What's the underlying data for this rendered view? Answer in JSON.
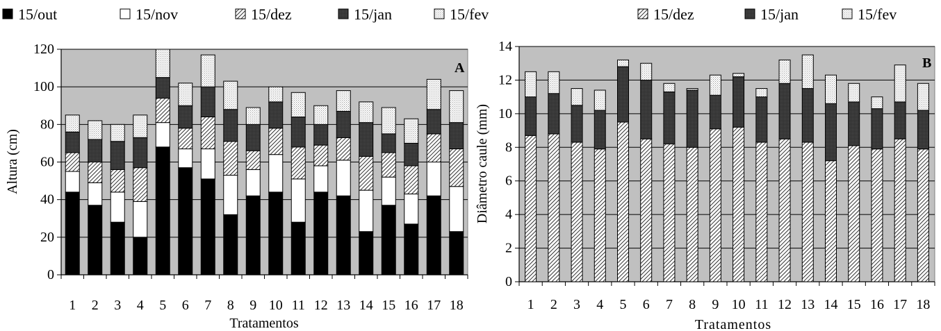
{
  "chart_data": [
    {
      "type": "bar",
      "stacked": true,
      "panel_label": "A",
      "title": "",
      "xlabel": "Tratamentos",
      "ylabel": "Altura (cm)",
      "ylim": [
        0,
        120
      ],
      "yticks": [
        0,
        20,
        40,
        60,
        80,
        100,
        120
      ],
      "grid": true,
      "legend": "top",
      "categories": [
        "1",
        "2",
        "3",
        "4",
        "5",
        "6",
        "7",
        "8",
        "9",
        "10",
        "11",
        "12",
        "13",
        "14",
        "15",
        "16",
        "17",
        "18"
      ],
      "series": [
        {
          "name": "15/out",
          "pattern": "black",
          "values": [
            44,
            37,
            28,
            20,
            68,
            57,
            51,
            32,
            42,
            44,
            28,
            44,
            42,
            23,
            37,
            27,
            42,
            23
          ]
        },
        {
          "name": "15/nov",
          "pattern": "white",
          "values": [
            11,
            12,
            16,
            19,
            13,
            10,
            16,
            21,
            14,
            20,
            23,
            14,
            19,
            22,
            15,
            16,
            18,
            24
          ]
        },
        {
          "name": "15/dez",
          "pattern": "hatch",
          "values": [
            10,
            11,
            12,
            18,
            13,
            11,
            17,
            18,
            10,
            14,
            17,
            11,
            12,
            18,
            13,
            15,
            15,
            20
          ]
        },
        {
          "name": "15/jan",
          "pattern": "dark",
          "values": [
            11,
            12,
            15,
            16,
            11,
            12,
            16,
            17,
            14,
            14,
            16,
            11,
            14,
            18,
            10,
            12,
            13,
            14
          ]
        },
        {
          "name": "15/fev",
          "pattern": "dots",
          "values": [
            9,
            10,
            9,
            12,
            15,
            12,
            17,
            15,
            9,
            8,
            13,
            10,
            11,
            11,
            14,
            13,
            16,
            17
          ]
        }
      ]
    },
    {
      "type": "bar",
      "stacked": true,
      "panel_label": "B",
      "title": "",
      "xlabel": "Tratamentos",
      "ylabel": "Diâmetro caule (mm)",
      "ylim": [
        0,
        14
      ],
      "yticks": [
        0,
        2,
        4,
        6,
        8,
        10,
        12,
        14
      ],
      "grid": true,
      "legend": "top",
      "categories": [
        "1",
        "2",
        "3",
        "4",
        "5",
        "6",
        "7",
        "8",
        "9",
        "10",
        "11",
        "12",
        "13",
        "14",
        "15",
        "16",
        "17",
        "18"
      ],
      "series": [
        {
          "name": "15/dez",
          "pattern": "hatch",
          "values": [
            8.7,
            8.8,
            8.3,
            7.9,
            9.5,
            8.5,
            8.2,
            8.0,
            9.1,
            9.2,
            8.3,
            8.5,
            8.3,
            7.2,
            8.1,
            7.9,
            8.5,
            7.9
          ]
        },
        {
          "name": "15/jan",
          "pattern": "dark",
          "values": [
            2.3,
            2.4,
            2.2,
            2.3,
            3.3,
            3.5,
            3.1,
            3.4,
            2.0,
            3.0,
            2.7,
            3.3,
            3.2,
            3.4,
            2.6,
            2.4,
            2.2,
            2.3
          ]
        },
        {
          "name": "15/fev",
          "pattern": "dots",
          "values": [
            1.5,
            1.3,
            1.0,
            1.2,
            0.4,
            1.0,
            0.5,
            0.1,
            1.2,
            0.2,
            0.5,
            1.4,
            2.0,
            1.7,
            1.1,
            0.7,
            2.2,
            1.6
          ]
        }
      ]
    }
  ]
}
